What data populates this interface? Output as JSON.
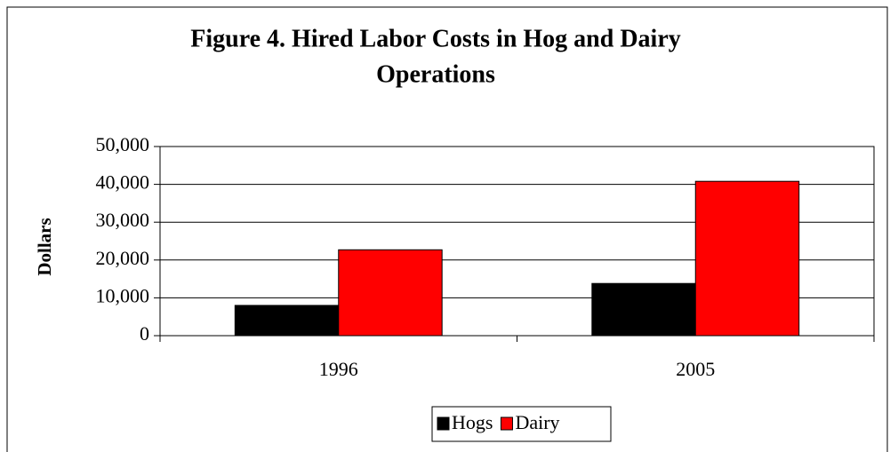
{
  "chart_data": {
    "type": "bar",
    "title": [
      "Figure 4. Hired Labor Costs in Hog and Dairy",
      "Operations"
    ],
    "y_label": "Dollars",
    "categories": [
      "1996",
      "2005"
    ],
    "series": [
      {
        "name": "Hogs",
        "color": "#000000",
        "values": [
          8000,
          13800
        ]
      },
      {
        "name": "Dairy",
        "color": "#ff0000",
        "values": [
          22700,
          40800
        ]
      }
    ],
    "ylim": [
      0,
      50000
    ],
    "yticks": [
      0,
      {
        "value": 10000,
        "label": "10,000"
      },
      {
        "value": 20000,
        "label": "20,000"
      },
      {
        "value": 30000,
        "label": "30,000"
      },
      {
        "value": 40000,
        "label": "40,000"
      },
      {
        "value": 50000,
        "label": "50,000"
      }
    ],
    "grid": true,
    "legend": "bottom"
  }
}
